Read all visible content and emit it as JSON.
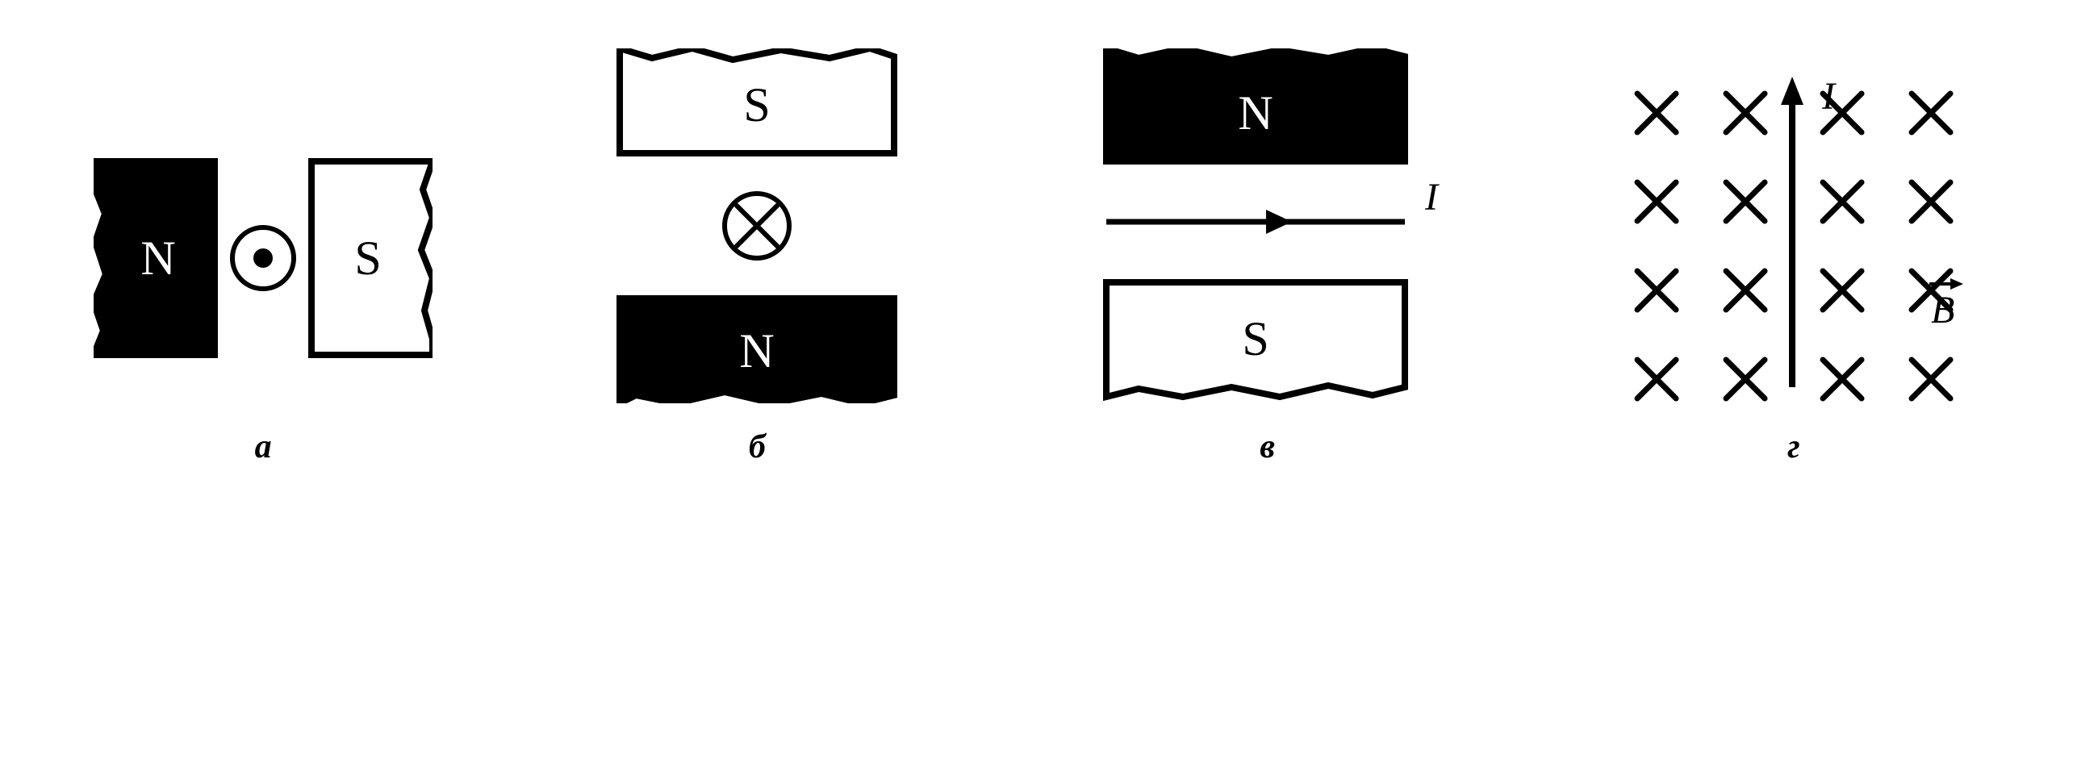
{
  "colors": {
    "black": "#000000",
    "white": "#ffffff"
  },
  "stroke": {
    "magnet": 8,
    "symbol": 6,
    "arrow": 7,
    "cross": 7
  },
  "font": {
    "poleSize": 60,
    "poleFamily": "Times New Roman, serif",
    "labelSize": 48,
    "italicSize": 48
  },
  "diagrams": {
    "a": {
      "label": "а",
      "type": "magnet-gap-current",
      "orientation": "horizontal",
      "leftPole": {
        "letter": "N",
        "fill": "black",
        "text": "white"
      },
      "rightPole": {
        "letter": "S",
        "fill": "white",
        "text": "black"
      },
      "current": {
        "direction": "out"
      }
    },
    "b": {
      "label": "б",
      "type": "magnet-gap-current",
      "orientation": "vertical",
      "topPole": {
        "letter": "S",
        "fill": "white",
        "text": "black"
      },
      "bottomPole": {
        "letter": "N",
        "fill": "black",
        "text": "white"
      },
      "current": {
        "direction": "in"
      }
    },
    "c": {
      "label": "в",
      "type": "magnet-gap-wire",
      "orientation": "vertical",
      "topPole": {
        "letter": "N",
        "fill": "black",
        "text": "white"
      },
      "bottomPole": {
        "letter": "S",
        "fill": "white",
        "text": "black"
      },
      "current": {
        "direction": "right",
        "label": "I"
      }
    },
    "d": {
      "label": "г",
      "type": "field-wire",
      "fieldDirection": "into-page",
      "grid": {
        "rows": 4,
        "cols": 4
      },
      "current": {
        "direction": "up",
        "label": "I"
      },
      "fieldLabel": "B"
    }
  }
}
